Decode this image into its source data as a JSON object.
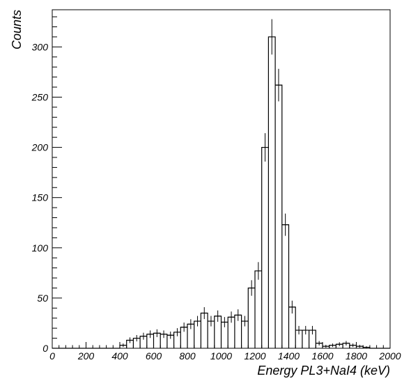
{
  "chart_data": {
    "type": "histogram",
    "xlabel": "Energy PL3+NaI4 (keV)",
    "ylabel": "Counts",
    "xlim": [
      0,
      2000
    ],
    "ylim": [
      0,
      337
    ],
    "xticks": [
      0,
      200,
      400,
      600,
      800,
      1000,
      1200,
      1400,
      1600,
      1800,
      2000
    ],
    "yticks": [
      0,
      50,
      100,
      150,
      200,
      250,
      300
    ],
    "bin_width": 40,
    "bins": [
      {
        "x": 400,
        "y": 3
      },
      {
        "x": 440,
        "y": 8
      },
      {
        "x": 480,
        "y": 10
      },
      {
        "x": 520,
        "y": 12
      },
      {
        "x": 560,
        "y": 14
      },
      {
        "x": 600,
        "y": 15
      },
      {
        "x": 640,
        "y": 14
      },
      {
        "x": 680,
        "y": 13
      },
      {
        "x": 720,
        "y": 16
      },
      {
        "x": 760,
        "y": 21
      },
      {
        "x": 800,
        "y": 24
      },
      {
        "x": 840,
        "y": 27
      },
      {
        "x": 880,
        "y": 35
      },
      {
        "x": 920,
        "y": 27
      },
      {
        "x": 960,
        "y": 32
      },
      {
        "x": 1000,
        "y": 26
      },
      {
        "x": 1040,
        "y": 31
      },
      {
        "x": 1080,
        "y": 33
      },
      {
        "x": 1120,
        "y": 27
      },
      {
        "x": 1160,
        "y": 60
      },
      {
        "x": 1200,
        "y": 77
      },
      {
        "x": 1240,
        "y": 200
      },
      {
        "x": 1280,
        "y": 310
      },
      {
        "x": 1320,
        "y": 262
      },
      {
        "x": 1360,
        "y": 123
      },
      {
        "x": 1400,
        "y": 41
      },
      {
        "x": 1440,
        "y": 18
      },
      {
        "x": 1480,
        "y": 18
      },
      {
        "x": 1520,
        "y": 18
      },
      {
        "x": 1560,
        "y": 5
      },
      {
        "x": 1600,
        "y": 2
      },
      {
        "x": 1640,
        "y": 3
      },
      {
        "x": 1680,
        "y": 4
      },
      {
        "x": 1720,
        "y": 5
      },
      {
        "x": 1760,
        "y": 3
      },
      {
        "x": 1800,
        "y": 2
      },
      {
        "x": 1840,
        "y": 1
      }
    ]
  }
}
